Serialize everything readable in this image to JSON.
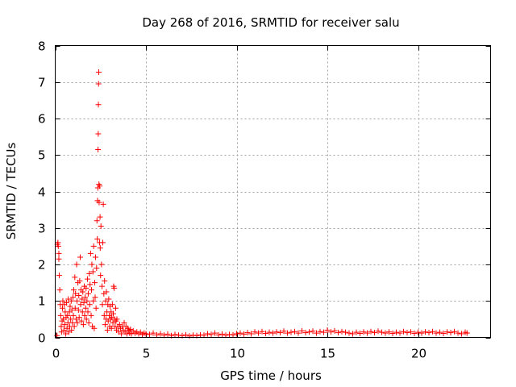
{
  "chart_data": {
    "type": "scatter",
    "title": "Day 268 of 2016, SRMTID for receiver salu",
    "xlabel": "GPS time / hours",
    "ylabel": "SRMTID / TECUs",
    "xlim": [
      0,
      24
    ],
    "ylim": [
      0,
      8
    ],
    "xticks": [
      0,
      5,
      10,
      15,
      20
    ],
    "yticks": [
      0,
      1,
      2,
      3,
      4,
      5,
      6,
      7,
      8
    ],
    "grid": true,
    "marker": "+",
    "series_color": "#ff0000",
    "points": [
      [
        0.1,
        0.05
      ],
      [
        0.12,
        2.55
      ],
      [
        0.15,
        2.6
      ],
      [
        0.17,
        2.5
      ],
      [
        0.2,
        2.3
      ],
      [
        0.2,
        2.15
      ],
      [
        0.22,
        1.7
      ],
      [
        0.25,
        1.3
      ],
      [
        0.28,
        0.9
      ],
      [
        0.3,
        0.6
      ],
      [
        0.33,
        0.3
      ],
      [
        0.35,
        0.15
      ],
      [
        0.38,
        0.45
      ],
      [
        0.4,
        0.8
      ],
      [
        0.42,
        1.0
      ],
      [
        0.45,
        0.5
      ],
      [
        0.48,
        0.2
      ],
      [
        0.5,
        0.9
      ],
      [
        0.52,
        0.35
      ],
      [
        0.55,
        0.7
      ],
      [
        0.58,
        0.1
      ],
      [
        0.6,
        0.55
      ],
      [
        0.62,
        0.95
      ],
      [
        0.65,
        0.25
      ],
      [
        0.68,
        0.6
      ],
      [
        0.7,
        0.4
      ],
      [
        0.72,
        1.05
      ],
      [
        0.75,
        0.15
      ],
      [
        0.78,
        0.7
      ],
      [
        0.8,
        0.3
      ],
      [
        0.82,
        0.85
      ],
      [
        0.85,
        0.5
      ],
      [
        0.88,
        1.0
      ],
      [
        0.9,
        0.2
      ],
      [
        0.92,
        0.75
      ],
      [
        0.95,
        0.4
      ],
      [
        0.98,
        1.1
      ],
      [
        1.0,
        0.6
      ],
      [
        1.02,
        1.3
      ],
      [
        1.05,
        0.3
      ],
      [
        1.08,
        1.65
      ],
      [
        1.1,
        0.8
      ],
      [
        1.12,
        1.2
      ],
      [
        1.15,
        0.5
      ],
      [
        1.18,
        2.0
      ],
      [
        1.2,
        1.0
      ],
      [
        1.22,
        0.4
      ],
      [
        1.25,
        1.5
      ],
      [
        1.28,
        0.75
      ],
      [
        1.3,
        1.15
      ],
      [
        1.32,
        0.55
      ],
      [
        1.35,
        1.55
      ],
      [
        1.38,
        2.2
      ],
      [
        1.4,
        0.9
      ],
      [
        1.42,
        1.3
      ],
      [
        1.45,
        0.45
      ],
      [
        1.48,
        1.05
      ],
      [
        1.5,
        0.7
      ],
      [
        1.52,
        1.25
      ],
      [
        1.55,
        0.35
      ],
      [
        1.58,
        0.95
      ],
      [
        1.6,
        1.4
      ],
      [
        1.62,
        0.6
      ],
      [
        1.65,
        1.1
      ],
      [
        1.68,
        0.8
      ],
      [
        1.7,
        1.35
      ],
      [
        1.72,
        0.5
      ],
      [
        1.75,
        1.0
      ],
      [
        1.78,
        1.6
      ],
      [
        1.8,
        0.7
      ],
      [
        1.82,
        1.2
      ],
      [
        1.85,
        0.4
      ],
      [
        1.88,
        1.75
      ],
      [
        1.9,
        0.9
      ],
      [
        1.92,
        1.45
      ],
      [
        1.95,
        2.3
      ],
      [
        1.98,
        0.6
      ],
      [
        2.0,
        1.3
      ],
      [
        2.02,
        2.0
      ],
      [
        2.05,
        0.3
      ],
      [
        2.08,
        1.8
      ],
      [
        2.1,
        1.0
      ],
      [
        2.12,
        2.5
      ],
      [
        2.15,
        0.25
      ],
      [
        2.18,
        1.5
      ],
      [
        2.2,
        1.1
      ],
      [
        2.22,
        2.2
      ],
      [
        2.25,
        0.8
      ],
      [
        2.28,
        1.9
      ],
      [
        2.3,
        3.2
      ],
      [
        2.32,
        2.7
      ],
      [
        2.33,
        3.75
      ],
      [
        2.35,
        4.1
      ],
      [
        2.36,
        5.15
      ],
      [
        2.37,
        5.58
      ],
      [
        2.38,
        6.38
      ],
      [
        2.39,
        6.95
      ],
      [
        2.4,
        7.27
      ],
      [
        2.41,
        4.2
      ],
      [
        2.42,
        3.7
      ],
      [
        2.44,
        2.6
      ],
      [
        2.45,
        4.15
      ],
      [
        2.47,
        3.3
      ],
      [
        2.48,
        2.45
      ],
      [
        2.5,
        1.7
      ],
      [
        2.52,
        3.05
      ],
      [
        2.55,
        2.0
      ],
      [
        2.58,
        1.4
      ],
      [
        2.6,
        0.9
      ],
      [
        2.62,
        2.6
      ],
      [
        2.65,
        3.65
      ],
      [
        2.68,
        1.2
      ],
      [
        2.7,
        0.6
      ],
      [
        2.72,
        1.55
      ],
      [
        2.75,
        0.35
      ],
      [
        2.78,
        1.0
      ],
      [
        2.8,
        0.5
      ],
      [
        2.82,
        1.25
      ],
      [
        2.85,
        0.7
      ],
      [
        2.88,
        0.2
      ],
      [
        2.9,
        0.9
      ],
      [
        2.92,
        0.45
      ],
      [
        2.95,
        1.05
      ],
      [
        2.98,
        0.6
      ],
      [
        3.0,
        0.3
      ],
      [
        3.02,
        0.85
      ],
      [
        3.05,
        0.5
      ],
      [
        3.08,
        0.7
      ],
      [
        3.1,
        0.25
      ],
      [
        3.12,
        0.55
      ],
      [
        3.15,
        0.9
      ],
      [
        3.18,
        0.4
      ],
      [
        3.2,
        0.65
      ],
      [
        3.22,
        1.4
      ],
      [
        3.25,
        1.35
      ],
      [
        3.28,
        0.5
      ],
      [
        3.3,
        0.3
      ],
      [
        3.33,
        0.8
      ],
      [
        3.35,
        0.45
      ],
      [
        3.38,
        0.2
      ],
      [
        3.4,
        0.5
      ],
      [
        3.45,
        0.3
      ],
      [
        3.5,
        0.15
      ],
      [
        3.55,
        0.35
      ],
      [
        3.6,
        0.25
      ],
      [
        3.65,
        0.1
      ],
      [
        3.7,
        0.3
      ],
      [
        3.75,
        0.2
      ],
      [
        3.8,
        0.4
      ],
      [
        3.85,
        0.15
      ],
      [
        3.9,
        0.3
      ],
      [
        3.95,
        0.1
      ],
      [
        4.0,
        0.25
      ],
      [
        4.05,
        0.2
      ],
      [
        4.1,
        0.12
      ],
      [
        4.15,
        0.22
      ],
      [
        4.2,
        0.1
      ],
      [
        4.3,
        0.18
      ],
      [
        4.4,
        0.12
      ],
      [
        4.5,
        0.15
      ],
      [
        4.6,
        0.1
      ],
      [
        4.7,
        0.14
      ],
      [
        4.8,
        0.08
      ],
      [
        4.9,
        0.12
      ],
      [
        5.0,
        0.1
      ],
      [
        5.2,
        0.08
      ],
      [
        5.4,
        0.12
      ],
      [
        5.6,
        0.07
      ],
      [
        5.8,
        0.1
      ],
      [
        6.0,
        0.06
      ],
      [
        6.2,
        0.09
      ],
      [
        6.4,
        0.05
      ],
      [
        6.6,
        0.08
      ],
      [
        6.8,
        0.06
      ],
      [
        7.0,
        0.05
      ],
      [
        7.2,
        0.07
      ],
      [
        7.4,
        0.04
      ],
      [
        7.6,
        0.06
      ],
      [
        7.8,
        0.05
      ],
      [
        8.0,
        0.07
      ],
      [
        8.2,
        0.06
      ],
      [
        8.4,
        0.1
      ],
      [
        8.6,
        0.08
      ],
      [
        8.8,
        0.12
      ],
      [
        9.0,
        0.07
      ],
      [
        9.2,
        0.09
      ],
      [
        9.4,
        0.06
      ],
      [
        9.6,
        0.08
      ],
      [
        9.8,
        0.07
      ],
      [
        10.0,
        0.1
      ],
      [
        10.2,
        0.12
      ],
      [
        10.4,
        0.09
      ],
      [
        10.6,
        0.13
      ],
      [
        10.8,
        0.1
      ],
      [
        11.0,
        0.15
      ],
      [
        11.2,
        0.12
      ],
      [
        11.4,
        0.16
      ],
      [
        11.6,
        0.11
      ],
      [
        11.8,
        0.14
      ],
      [
        12.0,
        0.12
      ],
      [
        12.2,
        0.15
      ],
      [
        12.4,
        0.13
      ],
      [
        12.6,
        0.17
      ],
      [
        12.8,
        0.12
      ],
      [
        13.0,
        0.14
      ],
      [
        13.2,
        0.16
      ],
      [
        13.4,
        0.12
      ],
      [
        13.6,
        0.18
      ],
      [
        13.8,
        0.13
      ],
      [
        14.0,
        0.15
      ],
      [
        14.2,
        0.17
      ],
      [
        14.4,
        0.12
      ],
      [
        14.6,
        0.16
      ],
      [
        14.8,
        0.14
      ],
      [
        15.0,
        0.2
      ],
      [
        15.2,
        0.15
      ],
      [
        15.4,
        0.18
      ],
      [
        15.6,
        0.13
      ],
      [
        15.8,
        0.16
      ],
      [
        16.0,
        0.14
      ],
      [
        16.2,
        0.12
      ],
      [
        16.4,
        0.1
      ],
      [
        16.6,
        0.14
      ],
      [
        16.8,
        0.11
      ],
      [
        17.0,
        0.15
      ],
      [
        17.2,
        0.12
      ],
      [
        17.4,
        0.16
      ],
      [
        17.6,
        0.13
      ],
      [
        17.8,
        0.17
      ],
      [
        18.0,
        0.14
      ],
      [
        18.2,
        0.12
      ],
      [
        18.4,
        0.15
      ],
      [
        18.6,
        0.11
      ],
      [
        18.8,
        0.14
      ],
      [
        19.0,
        0.12
      ],
      [
        19.2,
        0.16
      ],
      [
        19.4,
        0.13
      ],
      [
        19.6,
        0.15
      ],
      [
        19.8,
        0.11
      ],
      [
        20.0,
        0.14
      ],
      [
        20.2,
        0.12
      ],
      [
        20.4,
        0.15
      ],
      [
        20.6,
        0.13
      ],
      [
        20.8,
        0.16
      ],
      [
        21.0,
        0.12
      ],
      [
        21.2,
        0.14
      ],
      [
        21.4,
        0.11
      ],
      [
        21.6,
        0.15
      ],
      [
        21.8,
        0.13
      ],
      [
        22.0,
        0.16
      ],
      [
        22.2,
        0.12
      ],
      [
        22.4,
        0.1
      ],
      [
        22.6,
        0.14
      ],
      [
        22.7,
        0.12
      ]
    ]
  }
}
